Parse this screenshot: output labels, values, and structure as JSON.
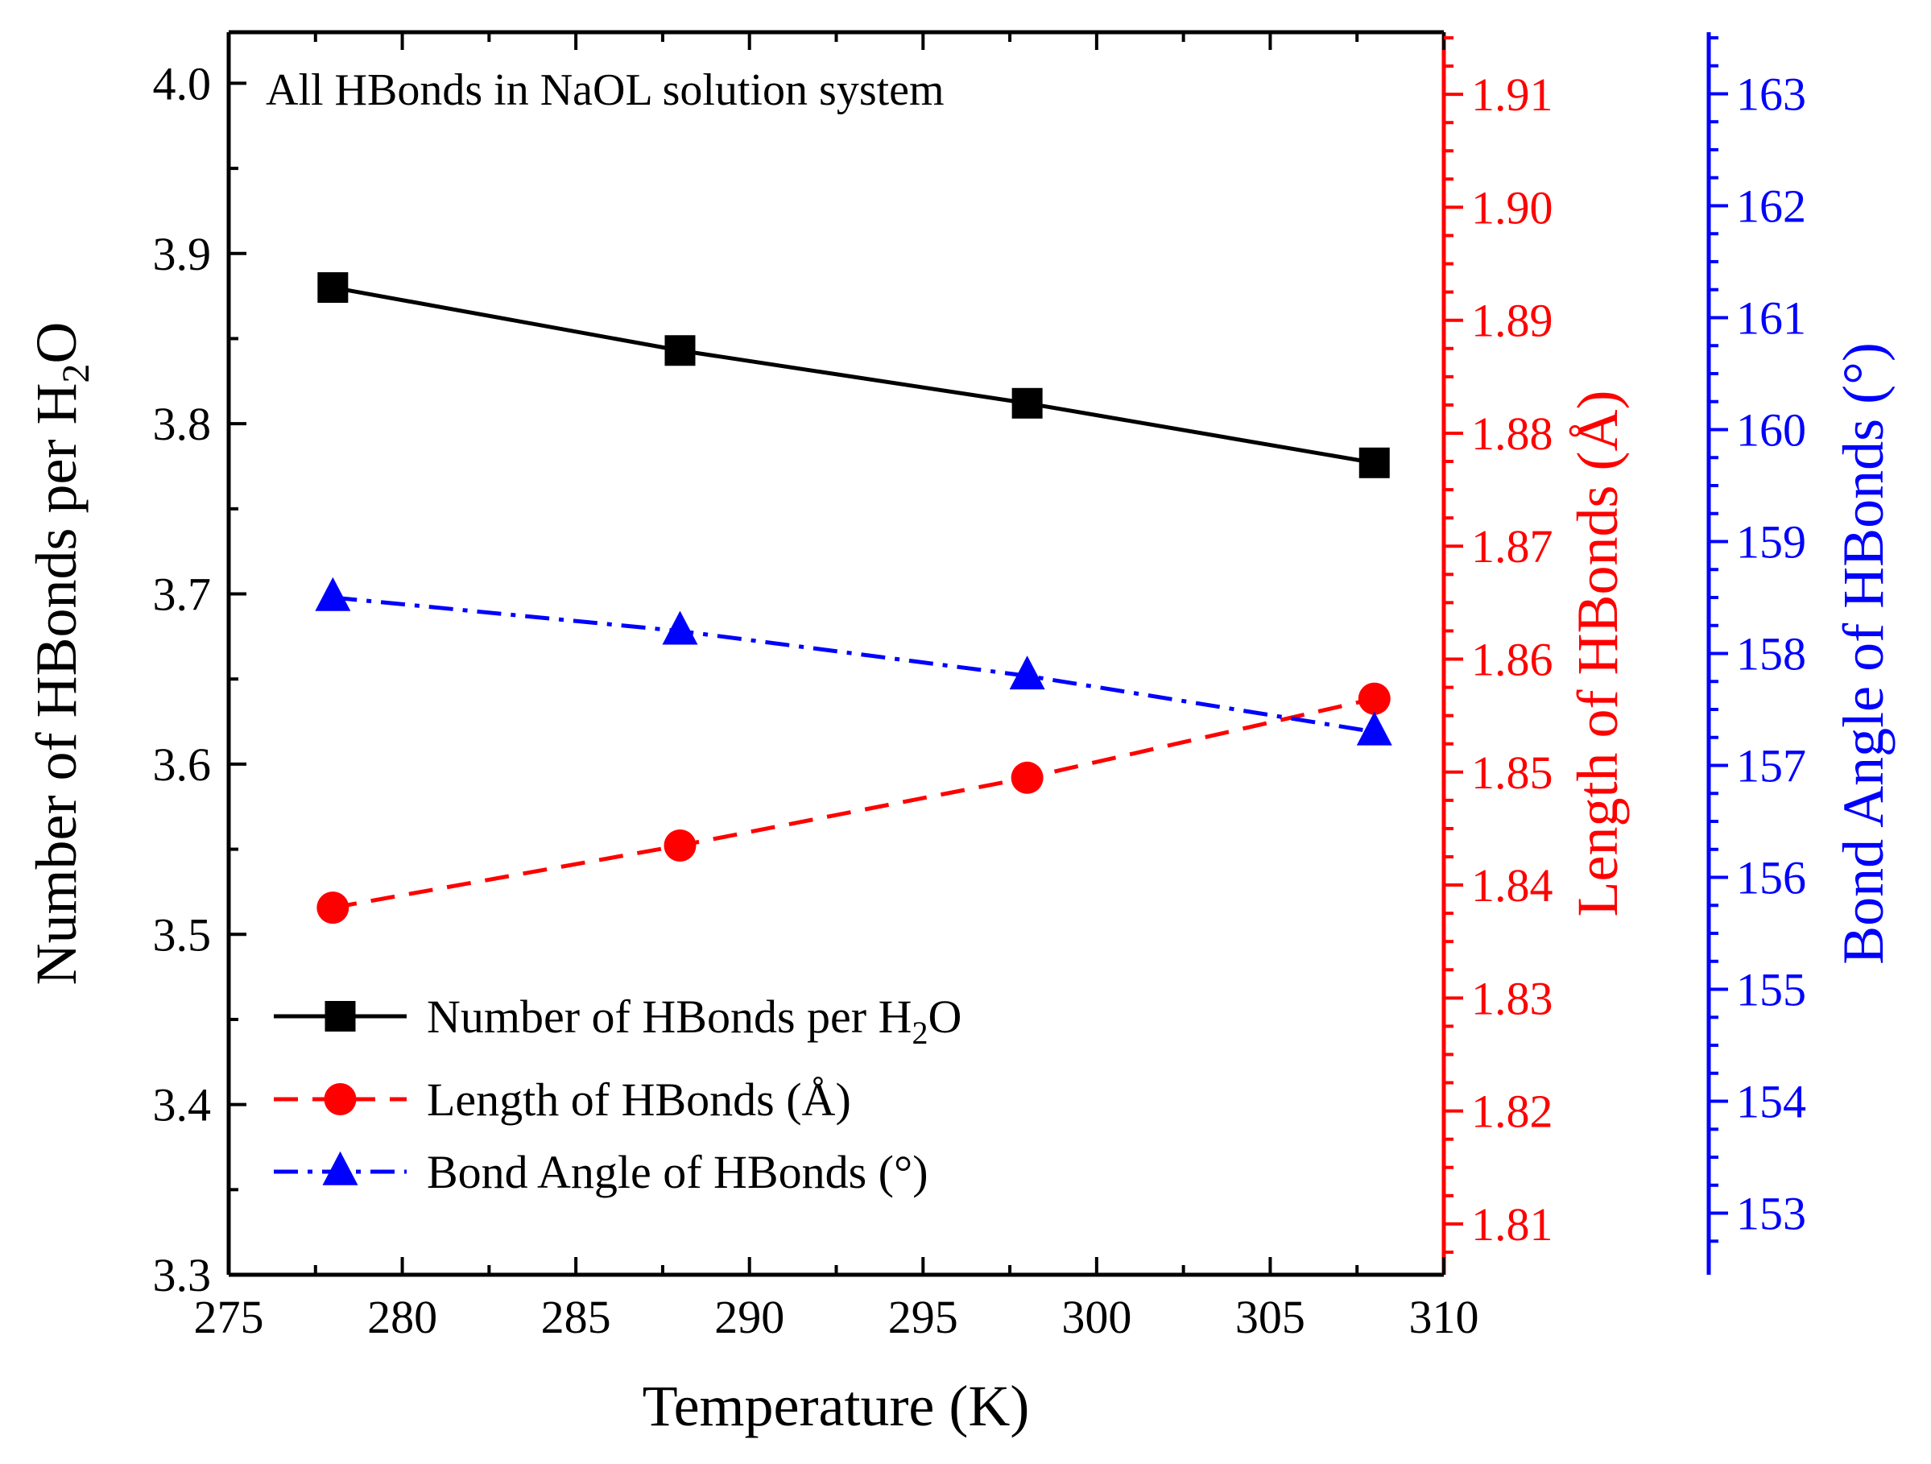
{
  "chart_data": {
    "type": "line",
    "annotation": "All HBonds in NaOL solution system",
    "xlabel": "Temperature (K)",
    "xlim": [
      275,
      310
    ],
    "xticks": [
      "275",
      "280",
      "285",
      "290",
      "295",
      "300",
      "305",
      "310"
    ],
    "grid": false,
    "legend_position": "bottom-left",
    "axes": {
      "left": {
        "label_main": "Number of HBonds per H",
        "label_sub": "2",
        "label_tail": "O",
        "lim": [
          3.3,
          4.03
        ],
        "ticks": [
          "3.3",
          "3.4",
          "3.5",
          "3.6",
          "3.7",
          "3.8",
          "3.9",
          "4.0"
        ],
        "color": "#000000"
      },
      "right": {
        "label": "Length of HBonds (Å)",
        "lim": [
          1.8055,
          1.9155
        ],
        "ticks": [
          "1.81",
          "1.82",
          "1.83",
          "1.84",
          "1.85",
          "1.86",
          "1.87",
          "1.88",
          "1.89",
          "1.90",
          "1.91"
        ],
        "color": "#ff0000"
      },
      "far_right": {
        "label": "Bond Angle of HBonds (°)",
        "lim": [
          152.45,
          163.55
        ],
        "ticks": [
          "153",
          "154",
          "155",
          "156",
          "157",
          "158",
          "159",
          "160",
          "161",
          "162",
          "163"
        ],
        "color": "#0000ff"
      }
    },
    "x": [
      278,
      288,
      298,
      308
    ],
    "series": [
      {
        "name_main": "Number of HBonds per H",
        "name_sub": "2",
        "name_tail": "O",
        "axis": "left",
        "values": [
          3.88,
          3.843,
          3.812,
          3.777
        ],
        "color": "#000000",
        "marker": "square",
        "line": "solid"
      },
      {
        "name": "Length of HBonds (Å)",
        "axis": "right",
        "values": [
          1.838,
          1.8435,
          1.8495,
          1.8565
        ],
        "color": "#ff0000",
        "marker": "circle",
        "line": "dash"
      },
      {
        "name": "Bond Angle of HBonds (°)",
        "axis": "far_right",
        "values": [
          158.5,
          158.2,
          157.8,
          157.3
        ],
        "color": "#0000ff",
        "marker": "triangle",
        "line": "dashdot"
      }
    ]
  }
}
